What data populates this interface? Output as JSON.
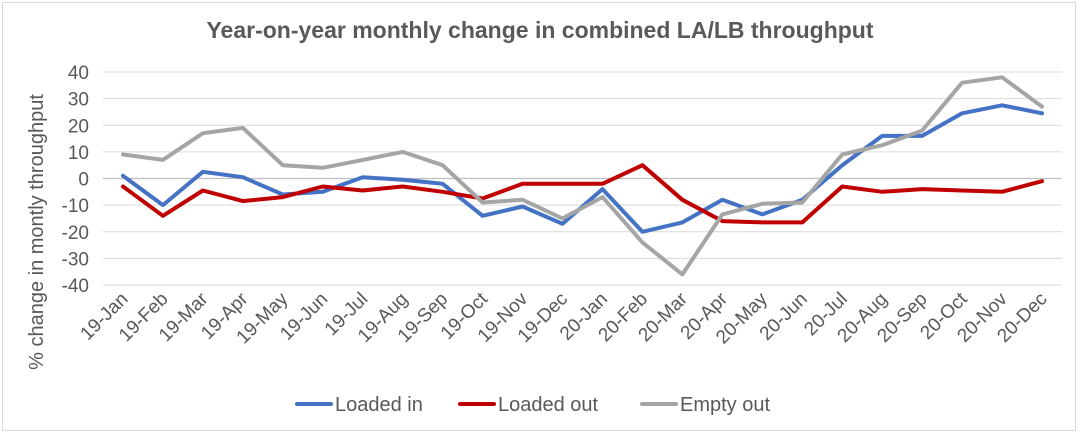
{
  "chart_data": {
    "type": "line",
    "title": "Year-on-year monthly change in combined LA/LB throughput",
    "xlabel": "",
    "ylabel": "% change in montly throughput",
    "ylim": [
      -40,
      40
    ],
    "yticks": [
      -40,
      -30,
      -20,
      -10,
      0,
      10,
      20,
      30,
      40
    ],
    "grid": true,
    "legend_position": "bottom",
    "categories": [
      "19-Jan",
      "19-Feb",
      "19-Mar",
      "19-Apr",
      "19-May",
      "19-Jun",
      "19-Jul",
      "19-Aug",
      "19-Sep",
      "19-Oct",
      "19-Nov",
      "19-Dec",
      "20-Jan",
      "20-Feb",
      "20-Mar",
      "20-Apr",
      "20-May",
      "20-Jun",
      "20-Jul",
      "20-Aug",
      "20-Sep",
      "20-Oct",
      "20-Nov",
      "20-Dec"
    ],
    "series": [
      {
        "name": "Loaded in",
        "color": "#4472C4",
        "values": [
          1,
          -10,
          2.5,
          0.5,
          -6,
          -5,
          0.5,
          -0.5,
          -2,
          -14,
          -10.5,
          -17,
          -4,
          -20,
          -16.5,
          -8,
          -13.5,
          -8,
          5,
          16,
          16,
          24.5,
          27.5,
          24.5
        ]
      },
      {
        "name": "Loaded out",
        "color": "#C00000",
        "values": [
          -3,
          -14,
          -4.5,
          -8.5,
          -7,
          -3,
          -4.5,
          -3,
          -5,
          -7.5,
          -2,
          -2,
          -2,
          5,
          -8,
          -16,
          -16.5,
          -16.5,
          -3,
          -5,
          -4,
          -4.5,
          -5,
          -1
        ]
      },
      {
        "name": "Empty out",
        "color": "#A5A5A5",
        "values": [
          9,
          7,
          17,
          19,
          5,
          4,
          7,
          10,
          5,
          -9,
          -8,
          -15,
          -7,
          -24,
          -36,
          -13.5,
          -9.5,
          -9,
          9,
          12.5,
          18,
          36,
          38,
          27
        ]
      }
    ]
  }
}
